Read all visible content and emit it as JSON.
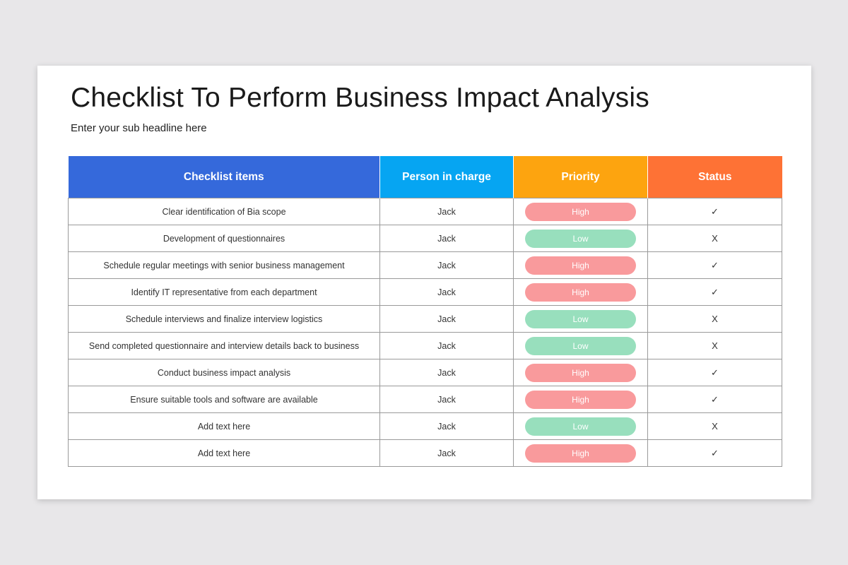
{
  "title": "Checklist To Perform Business Impact Analysis",
  "subtitle": "Enter your sub headline here",
  "table": {
    "headers": [
      {
        "label": "Checklist items",
        "color": "#3569db"
      },
      {
        "label": "Person in charge",
        "color": "#06a5f2"
      },
      {
        "label": "Priority",
        "color": "#fda40f"
      },
      {
        "label": "Status",
        "color": "#fe7235"
      }
    ],
    "priority_colors": {
      "High": "#f99a9c",
      "Low": "#98dfbd"
    },
    "rows": [
      {
        "item": "Clear identification of Bia scope",
        "person": "Jack",
        "priority": "High",
        "status": "✓"
      },
      {
        "item": "Development of questionnaires",
        "person": "Jack",
        "priority": "Low",
        "status": "X"
      },
      {
        "item": "Schedule regular meetings with senior business management",
        "person": "Jack",
        "priority": "High",
        "status": "✓"
      },
      {
        "item": "Identify IT representative from each department",
        "person": "Jack",
        "priority": "High",
        "status": "✓"
      },
      {
        "item": "Schedule interviews and finalize interview logistics",
        "person": "Jack",
        "priority": "Low",
        "status": "X"
      },
      {
        "item": "Send completed questionnaire and interview details back to business",
        "person": "Jack",
        "priority": "Low",
        "status": "X"
      },
      {
        "item": "Conduct business impact analysis",
        "person": "Jack",
        "priority": "High",
        "status": "✓"
      },
      {
        "item": "Ensure suitable tools and software are available",
        "person": "Jack",
        "priority": "High",
        "status": "✓"
      },
      {
        "item": "Add text here",
        "person": "Jack",
        "priority": "Low",
        "status": "X"
      },
      {
        "item": "Add text here",
        "person": "Jack",
        "priority": "High",
        "status": "✓"
      }
    ]
  }
}
